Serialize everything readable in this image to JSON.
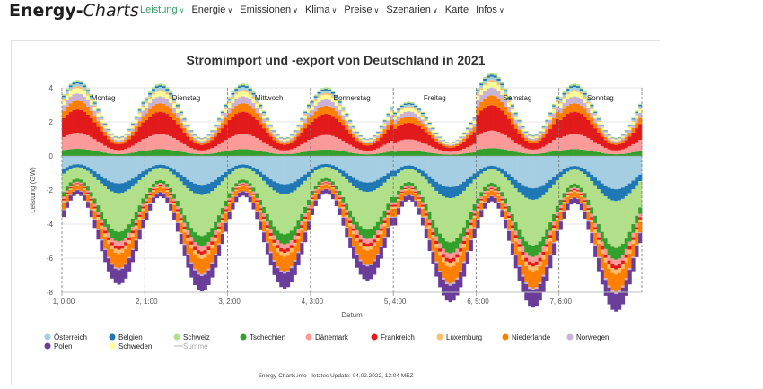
{
  "brand": {
    "part1": "Energy-",
    "part2": "Charts"
  },
  "nav": [
    {
      "label": "Leistung",
      "active": true
    },
    {
      "label": "Energie",
      "active": false
    },
    {
      "label": "Emissionen",
      "active": false
    },
    {
      "label": "Klima",
      "active": false
    },
    {
      "label": "Preise",
      "active": false
    },
    {
      "label": "Szenarien",
      "active": false
    },
    {
      "label": "Karte",
      "active": false
    },
    {
      "label": "Infos",
      "active": false
    }
  ],
  "chart_data": {
    "type": "area",
    "title": "Stromimport und -export von Deutschland in 2021",
    "xlabel": "Datum",
    "ylabel": "Leistung (GW)",
    "ylim": [
      -8,
      4
    ],
    "yticks": [
      4,
      2,
      0,
      -2,
      -4,
      -6,
      -8
    ],
    "xticks": [
      "1, 0:00",
      "2, 1:00",
      "3, 2:00",
      "4, 3:00",
      "5, 4:00",
      "6, 5:00",
      "7, 6:00"
    ],
    "day_labels": [
      "Montag",
      "Dienstag",
      "Mittwoch",
      "Donnerstag",
      "Freitag",
      "Samstag",
      "Sonntag"
    ],
    "stacked": true,
    "grid": true,
    "legend_position": "bottom",
    "series": [
      {
        "name": "Österreich",
        "color": "#a6cee3",
        "import_peak": 0.15,
        "export_peak": -1.7
      },
      {
        "name": "Belgien",
        "color": "#1f78b4",
        "import_peak": 0.1,
        "export_peak": -0.6
      },
      {
        "name": "Schweiz",
        "color": "#b2df8a",
        "import_peak": 0.1,
        "export_peak": -2.4
      },
      {
        "name": "Tschechien",
        "color": "#33a02c",
        "import_peak": 0.4,
        "export_peak": -0.6
      },
      {
        "name": "Dänemark",
        "color": "#fb9a99",
        "import_peak": 0.9,
        "export_peak": -0.3
      },
      {
        "name": "Frankreich",
        "color": "#e31a1c",
        "import_peak": 1.3,
        "export_peak": -0.2
      },
      {
        "name": "Luxemburg",
        "color": "#fdbf6f",
        "import_peak": 0.1,
        "export_peak": -0.25
      },
      {
        "name": "Niederlande",
        "color": "#ff7f00",
        "import_peak": 0.5,
        "export_peak": -0.9
      },
      {
        "name": "Norwegen",
        "color": "#cab2d6",
        "import_peak": 0.4,
        "export_peak": -0.1
      },
      {
        "name": "Polen",
        "color": "#6a3d9a",
        "import_peak": 0.0,
        "export_peak": -0.9
      },
      {
        "name": "Schweden",
        "color": "#ffff99",
        "import_peak": 0.3,
        "export_peak": 0.0
      },
      {
        "name": "Summe",
        "color": "#cccccc",
        "import_peak": null,
        "export_peak": null
      }
    ]
  },
  "footer": "Energy-Charts.info - letztes Update: 04.02.2022, 12:04 MEZ"
}
